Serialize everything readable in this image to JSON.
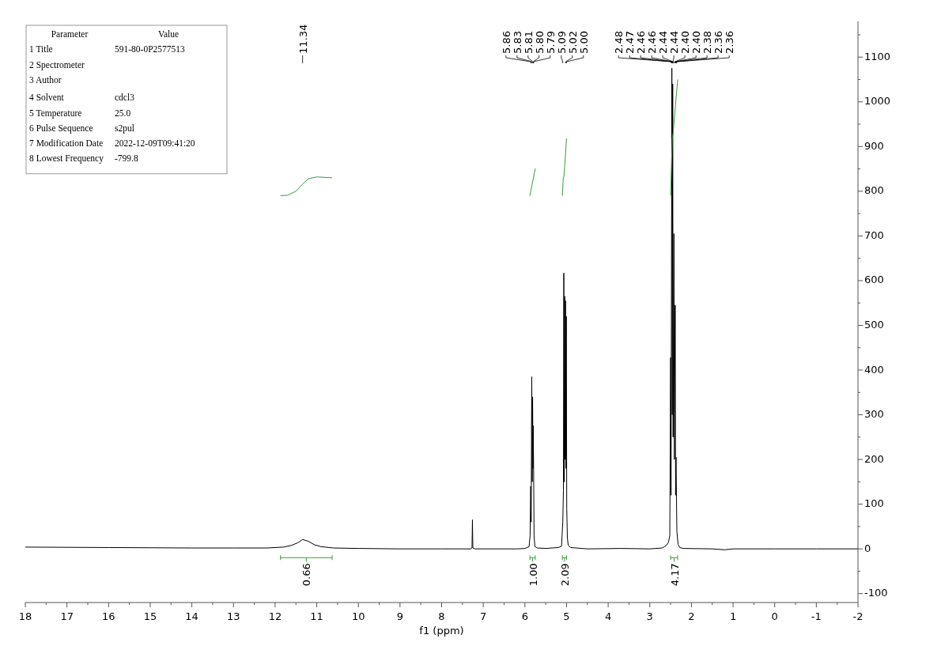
{
  "chart_data": [
    {
      "type": "line",
      "xlabel": "f1 (ppm)",
      "xlim": [
        18,
        -2
      ],
      "ylim": [
        -120,
        1180
      ],
      "grid": false,
      "line_style": "solid",
      "xticks": [
        18,
        {
          "value": 17.5,
          "label": null
        },
        17,
        {
          "value": 16.5,
          "label": null
        },
        16,
        {
          "value": 15.5,
          "label": null
        },
        15,
        {
          "value": 14.5,
          "label": null
        },
        14,
        {
          "value": 13.5,
          "label": null
        },
        13,
        {
          "value": 12.5,
          "label": null
        },
        12,
        {
          "value": 11.5,
          "label": null
        },
        11,
        {
          "value": 10.5,
          "label": null
        },
        10,
        {
          "value": 9.5,
          "label": null
        },
        9,
        {
          "value": 8.5,
          "label": null
        },
        8,
        {
          "value": 7.5,
          "label": null
        },
        7,
        {
          "value": 6.5,
          "label": null
        },
        6,
        {
          "value": 5.5,
          "label": null
        },
        5,
        {
          "value": 4.5,
          "label": null
        },
        4,
        {
          "value": 3.5,
          "label": null
        },
        3,
        {
          "value": 2.5,
          "label": null
        },
        2,
        {
          "value": 1.5,
          "label": null
        },
        1,
        {
          "value": 0.5,
          "label": null
        },
        0,
        {
          "value": -0.5,
          "label": null
        },
        -1,
        {
          "value": -1.5,
          "label": null
        },
        -2
      ],
      "yticks": [
        -100,
        {
          "value": -50,
          "label": null
        },
        0,
        {
          "value": 50,
          "label": null
        },
        100,
        {
          "value": 150,
          "label": null
        },
        200,
        {
          "value": 250,
          "label": null
        },
        300,
        {
          "value": 350,
          "label": null
        },
        400,
        {
          "value": 450,
          "label": null
        },
        500,
        {
          "value": 550,
          "label": null
        },
        600,
        {
          "value": 650,
          "label": null
        },
        700,
        {
          "value": 750,
          "label": null
        },
        800,
        {
          "value": 850,
          "label": null
        },
        900,
        {
          "value": 950,
          "label": null
        },
        1000,
        {
          "value": 1050,
          "label": null
        },
        1100,
        {
          "value": 1150,
          "label": null
        }
      ],
      "series": [
        {
          "type": "line",
          "color": "#000000",
          "x": [
            18,
            16,
            14,
            13,
            12.2,
            11.8,
            11.6,
            11.45,
            11.34,
            11.2,
            11.05,
            10.9,
            10.6,
            10,
            9,
            8,
            7.3,
            7.27,
            7.26,
            7.25,
            7.2,
            6.2,
            6,
            5.9,
            5.875,
            5.86,
            5.85,
            5.835,
            5.825,
            5.815,
            5.805,
            5.8,
            5.79,
            5.78,
            5.76,
            5.7,
            5.5,
            5.2,
            5.12,
            5.09,
            5.075,
            5.065,
            5.055,
            5.045,
            5.035,
            5.025,
            5.015,
            5.005,
            4.995,
            4.98,
            4.96,
            4.9,
            4.5,
            3.7,
            3,
            2.7,
            2.6,
            2.55,
            2.52,
            2.5,
            2.49,
            2.47,
            2.46,
            2.45,
            2.44,
            2.42,
            2.41,
            2.39,
            2.38,
            2.37,
            2.35,
            2.32,
            2.28,
            2.2,
            1.5,
            1.2,
            1,
            0,
            -1,
            -2
          ],
          "values": [
            4,
            3,
            2,
            2,
            2,
            4,
            8,
            14,
            21,
            17,
            9,
            5,
            2,
            1,
            0,
            0,
            0,
            2,
            65,
            2,
            0,
            0,
            1,
            5,
            30,
            140,
            60,
            385,
            150,
            340,
            180,
            276,
            170,
            30,
            5,
            2,
            1,
            3,
            6,
            60,
            130,
            617,
            150,
            565,
            200,
            555,
            180,
            520,
            90,
            25,
            8,
            3,
            0,
            1,
            0,
            2,
            8,
            15,
            30,
            428,
            120,
            1075,
            300,
            1040,
            250,
            705,
            200,
            545,
            120,
            205,
            40,
            10,
            3,
            1,
            0,
            -2,
            0,
            0,
            0,
            0
          ]
        },
        {
          "type": "line",
          "color": "#3a9a3a",
          "x": [
            11.87,
            11.7,
            11.5,
            11.35,
            11.2,
            11.0,
            10.63
          ],
          "values": [
            790,
            791,
            800,
            815,
            828,
            832,
            830
          ]
        },
        {
          "type": "line",
          "color": "#3a9a3a",
          "x": [
            5.88,
            5.75
          ],
          "values": [
            790,
            851
          ]
        },
        {
          "type": "line",
          "color": "#3a9a3a",
          "x": [
            5.1,
            5.08,
            5.06,
            5.0
          ],
          "values": [
            790,
            828,
            835,
            918
          ]
        },
        {
          "type": "line",
          "color": "#3a9a3a",
          "x": [
            2.5,
            2.46,
            2.44,
            2.33
          ],
          "values": [
            790,
            918,
            930,
            1050
          ]
        }
      ],
      "annotations": [
        "11.34",
        "5.86",
        "5.83",
        "5.81",
        "5.80",
        "5.79",
        "5.09",
        "5.02",
        "5.00",
        "2.48",
        "2.47",
        "2.46",
        "2.46",
        "2.44",
        "2.44",
        "2.40",
        "2.40",
        "2.38",
        "2.36",
        "2.36",
        "0.66",
        "1.00",
        "2.09",
        "4.17"
      ]
    },
    {
      "type": "other",
      "annotations": [
        "Parameter",
        "Value",
        "1 Title",
        "591-80-0P2577513",
        "2 Spectrometer",
        null,
        "3 Author",
        null,
        "4 Solvent",
        "cdcl3",
        "5 Temperature",
        "25.0",
        "6 Pulse Sequence",
        "s2pul",
        "7 Modification Date",
        "2022-12-09T09:41:20",
        "8 Lowest Frequency",
        "-799.8"
      ]
    }
  ]
}
